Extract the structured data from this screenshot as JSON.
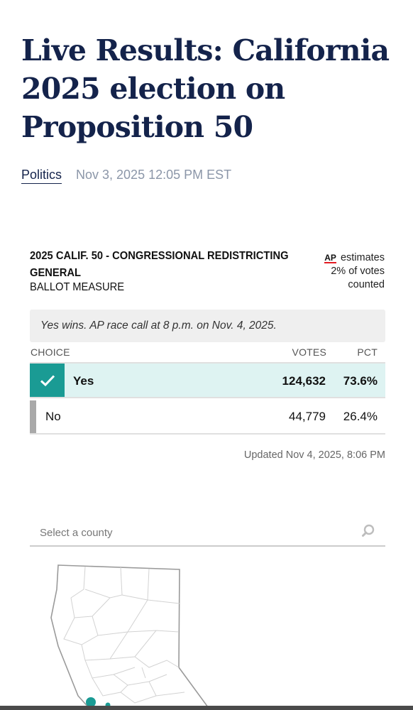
{
  "article": {
    "headline": "Live Results: California 2025 election on Proposition 50",
    "category": "Politics",
    "dateline": "Nov 3, 2025 12:05 PM EST"
  },
  "race": {
    "title": "2025 CALIF. 50 - CONGRESSIONAL REDISTRICTING GENERAL",
    "subtitle": "BALLOT MEASURE",
    "ap_logo_text": "AP",
    "estimate_line1": "estimates",
    "estimate_line2": "2% of votes",
    "estimate_line3": "counted",
    "call_text": "Yes wins. AP race call at 8 p.m. on Nov. 4, 2025.",
    "columns": {
      "choice": "CHOICE",
      "votes": "VOTES",
      "pct": "PCT"
    },
    "choices": [
      {
        "label": "Yes",
        "votes": "124,632",
        "pct": "73.6%",
        "winner": true,
        "color": "#1a9b94"
      },
      {
        "label": "No",
        "votes": "44,779",
        "pct": "26.4%",
        "winner": false,
        "color": "#a9a9a9"
      }
    ],
    "updated": "Updated Nov 4, 2025, 8:06 PM"
  },
  "county_search": {
    "placeholder": "Select a county",
    "icon": "search-icon"
  },
  "colors": {
    "headline": "#14234b",
    "winner_fill": "#def3f2",
    "winner_accent": "#1a9b94",
    "ap_red": "#e31b23"
  }
}
